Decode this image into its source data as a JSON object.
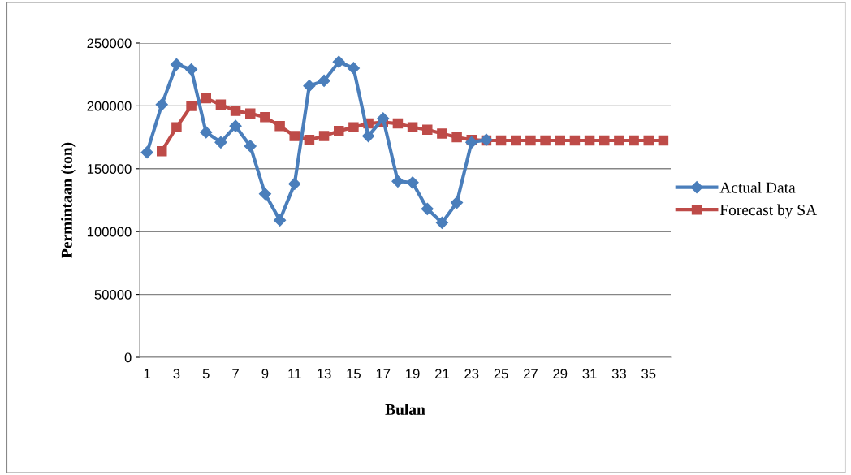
{
  "chart_data": {
    "type": "line",
    "xlabel": "Bulan",
    "ylabel": "Permintaan (ton)",
    "categories": [
      "1",
      null,
      "3",
      null,
      "5",
      null,
      "7",
      null,
      "9",
      null,
      "11",
      null,
      "13",
      null,
      "15",
      null,
      "17",
      null,
      "19",
      null,
      "21",
      null,
      "23",
      null,
      "25",
      null,
      "27",
      null,
      "29",
      null,
      "31",
      null,
      "33",
      null,
      "35",
      null
    ],
    "series": [
      {
        "name": "Actual Data",
        "color": "#4a7ebb",
        "marker": "diamond",
        "values": [
          163000,
          201000,
          233000,
          229000,
          179000,
          171000,
          184000,
          168000,
          130000,
          109000,
          138000,
          216000,
          220000,
          235000,
          230000,
          176000,
          190000,
          140000,
          139000,
          118000,
          107000,
          123000,
          171000,
          173000,
          null,
          null,
          null,
          null,
          null,
          null,
          null,
          null,
          null,
          null,
          null,
          null
        ]
      },
      {
        "name": "Forecast by SA",
        "color": "#be4b48",
        "marker": "square",
        "values": [
          null,
          164000,
          183000,
          200000,
          206000,
          201000,
          196000,
          194000,
          191000,
          184000,
          176000,
          173000,
          176000,
          180000,
          183000,
          186000,
          187000,
          186000,
          183000,
          181000,
          178000,
          175000,
          173000,
          172500,
          172500,
          172500,
          172500,
          172500,
          172500,
          172500,
          172500,
          172500,
          172500,
          172500,
          172500,
          172500
        ]
      }
    ],
    "ylim": [
      0,
      250000
    ],
    "yticks": [
      0,
      50000,
      100000,
      150000,
      200000,
      250000
    ],
    "grid": "y",
    "legend": "right",
    "line_style": "solid"
  }
}
